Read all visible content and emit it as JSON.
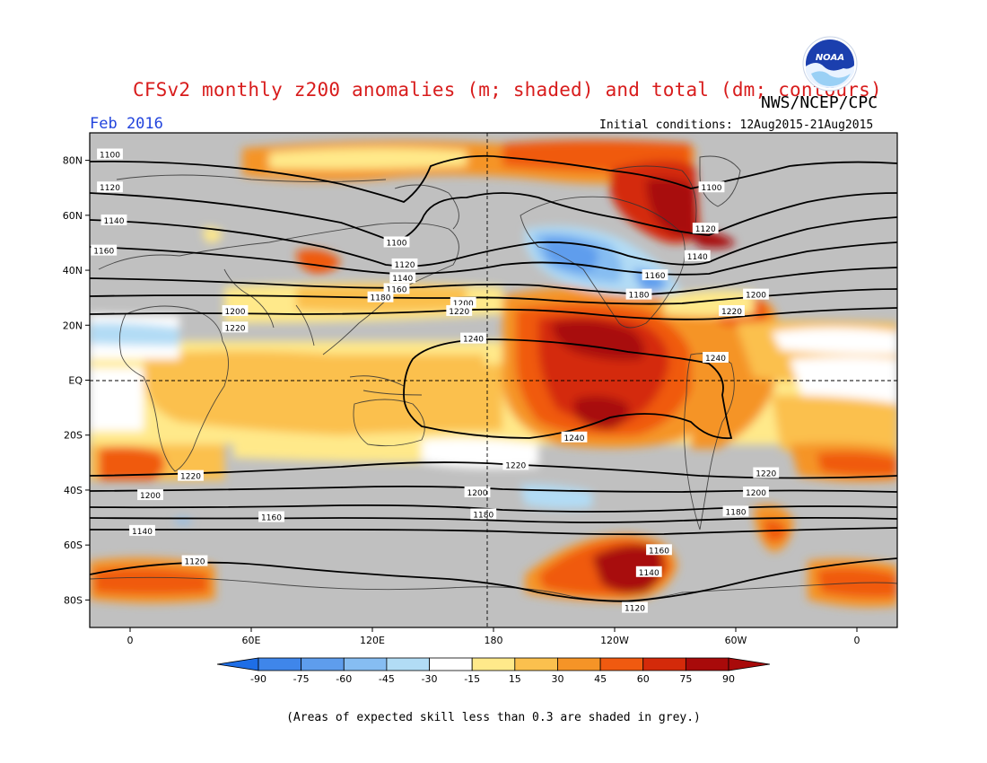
{
  "title": "CFSv2 monthly z200 anomalies (m; shaded) and total (dm; contours)",
  "agency": "NWS/NCEP/CPC",
  "logo_text": "NOAA",
  "month_label": "Feb 2016",
  "initial_conditions": "Initial conditions: 12Aug2015-21Aug2015",
  "footnote": "(Areas of expected skill less than 0.3 are shaded in grey.)",
  "colors": {
    "skill_grey": "#c0c0c0",
    "contour": "#000000",
    "coast": "#333333"
  },
  "lat_ticks": [
    "80N",
    "60N",
    "40N",
    "20N",
    "EQ",
    "20S",
    "40S",
    "60S",
    "80S"
  ],
  "lon_ticks": [
    "0",
    "60E",
    "120E",
    "180",
    "120W",
    "60W",
    "0"
  ],
  "colorbar": {
    "labels": [
      "-90",
      "-75",
      "-60",
      "-45",
      "-30",
      "-15",
      "15",
      "30",
      "45",
      "60",
      "75",
      "90"
    ],
    "colors": [
      "#1e6ee6",
      "#3f86ea",
      "#5e9ded",
      "#86bdf2",
      "#b2dcf5",
      "#ffffff",
      "#ffe98a",
      "#fbc04e",
      "#f59427",
      "#f05a10",
      "#d42a0a",
      "#a80a0a",
      "#a80a0a"
    ]
  },
  "chart_data": {
    "type": "map",
    "projection": "equirectangular",
    "lon_range": [
      -20,
      380
    ],
    "lat_range": [
      -90,
      90
    ],
    "anomaly_units": "m",
    "contour_units": "dm",
    "contour_levels": [
      1100,
      1120,
      1140,
      1160,
      1180,
      1200,
      1220,
      1240
    ],
    "contour_labels": [
      {
        "text": "1100",
        "lon": -10,
        "lat": 82
      },
      {
        "text": "1120",
        "lon": -10,
        "lat": 70
      },
      {
        "text": "1140",
        "lon": -8,
        "lat": 58
      },
      {
        "text": "1160",
        "lon": -13,
        "lat": 47
      },
      {
        "text": "1100",
        "lon": 132,
        "lat": 50
      },
      {
        "text": "1120",
        "lon": 136,
        "lat": 42
      },
      {
        "text": "1140",
        "lon": 135,
        "lat": 37
      },
      {
        "text": "1160",
        "lon": 132,
        "lat": 33
      },
      {
        "text": "1180",
        "lon": 124,
        "lat": 30
      },
      {
        "text": "1200",
        "lon": 52,
        "lat": 25
      },
      {
        "text": "1220",
        "lon": 52,
        "lat": 19
      },
      {
        "text": "1200",
        "lon": 165,
        "lat": 28
      },
      {
        "text": "1220",
        "lon": 163,
        "lat": 25
      },
      {
        "text": "1240",
        "lon": 170,
        "lat": 15
      },
      {
        "text": "1100",
        "lon": 288,
        "lat": 70
      },
      {
        "text": "1120",
        "lon": 285,
        "lat": 55
      },
      {
        "text": "1140",
        "lon": 281,
        "lat": 45
      },
      {
        "text": "1160",
        "lon": 260,
        "lat": 38
      },
      {
        "text": "1180",
        "lon": 252,
        "lat": 31
      },
      {
        "text": "1200",
        "lon": 310,
        "lat": 31
      },
      {
        "text": "1220",
        "lon": 298,
        "lat": 25
      },
      {
        "text": "1240",
        "lon": 290,
        "lat": 8
      },
      {
        "text": "1240",
        "lon": 220,
        "lat": -21
      },
      {
        "text": "1220",
        "lon": 30,
        "lat": -35
      },
      {
        "text": "1200",
        "lon": 10,
        "lat": -42
      },
      {
        "text": "1160",
        "lon": 70,
        "lat": -50
      },
      {
        "text": "1140",
        "lon": 6,
        "lat": -55
      },
      {
        "text": "1120",
        "lon": 32,
        "lat": -66
      },
      {
        "text": "1220",
        "lon": 191,
        "lat": -31
      },
      {
        "text": "1200",
        "lon": 172,
        "lat": -41
      },
      {
        "text": "1180",
        "lon": 175,
        "lat": -49
      },
      {
        "text": "1220",
        "lon": 315,
        "lat": -34
      },
      {
        "text": "1200",
        "lon": 310,
        "lat": -41
      },
      {
        "text": "1180",
        "lon": 300,
        "lat": -48
      },
      {
        "text": "1160",
        "lon": 262,
        "lat": -62
      },
      {
        "text": "1140",
        "lon": 257,
        "lat": -70
      },
      {
        "text": "1120",
        "lon": 250,
        "lat": -83
      }
    ],
    "notable_anomalies": [
      {
        "region": "eastern tropical Pacific",
        "value": 90
      },
      {
        "region": "Greenland / Canadian Arctic",
        "value": 90
      },
      {
        "region": "Southern Ocean near 120W",
        "value": 90
      },
      {
        "region": "North Pacific",
        "value": -60
      }
    ]
  }
}
